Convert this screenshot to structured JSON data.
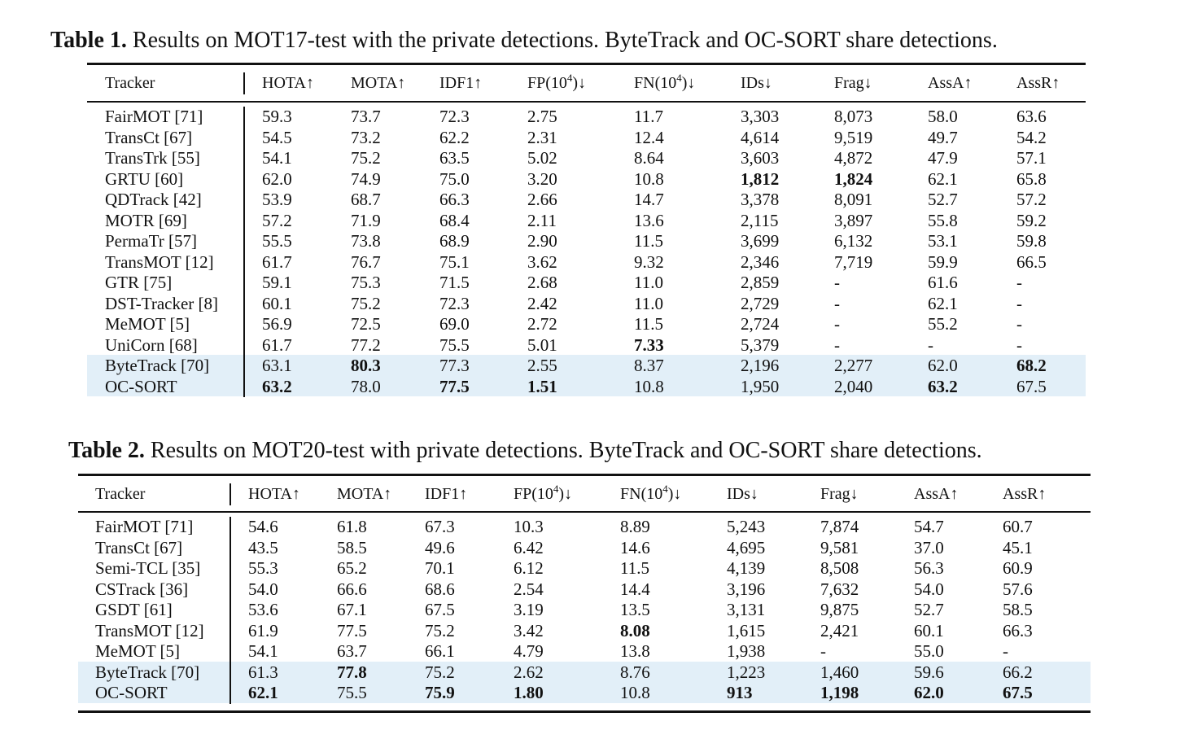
{
  "table1": {
    "caption_label": "Table 1.",
    "caption_text": "Results on MOT17-test with the private detections. ByteTrack and OC-SORT share detections.",
    "columns": [
      "Tracker",
      "HOTA↑",
      "MOTA↑",
      "IDF1↑",
      "FP(10^4)↓",
      "FN(10^4)↓",
      "IDs↓",
      "Frag↓",
      "AssA↑",
      "AssR↑"
    ],
    "highlight_color": "#e2eff8",
    "rows": [
      {
        "cells": [
          "FairMOT [71]",
          "59.3",
          "73.7",
          "72.3",
          "2.75",
          "11.7",
          "3,303",
          "8,073",
          "58.0",
          "63.6"
        ],
        "bold": []
      },
      {
        "cells": [
          "TransCt [67]",
          "54.5",
          "73.2",
          "62.2",
          "2.31",
          "12.4",
          "4,614",
          "9,519",
          "49.7",
          "54.2"
        ],
        "bold": []
      },
      {
        "cells": [
          "TransTrk [55]",
          "54.1",
          "75.2",
          "63.5",
          "5.02",
          "8.64",
          "3,603",
          "4,872",
          "47.9",
          "57.1"
        ],
        "bold": []
      },
      {
        "cells": [
          "GRTU [60]",
          "62.0",
          "74.9",
          "75.0",
          "3.20",
          "10.8",
          "1,812",
          "1,824",
          "62.1",
          "65.8"
        ],
        "bold": [
          6,
          7
        ]
      },
      {
        "cells": [
          "QDTrack [42]",
          "53.9",
          "68.7",
          "66.3",
          "2.66",
          "14.7",
          "3,378",
          "8,091",
          "52.7",
          "57.2"
        ],
        "bold": []
      },
      {
        "cells": [
          "MOTR [69]",
          "57.2",
          "71.9",
          "68.4",
          "2.11",
          "13.6",
          "2,115",
          "3,897",
          "55.8",
          "59.2"
        ],
        "bold": []
      },
      {
        "cells": [
          "PermaTr [57]",
          "55.5",
          "73.8",
          "68.9",
          "2.90",
          "11.5",
          "3,699",
          "6,132",
          "53.1",
          "59.8"
        ],
        "bold": []
      },
      {
        "cells": [
          "TransMOT [12]",
          "61.7",
          "76.7",
          "75.1",
          "3.62",
          "9.32",
          "2,346",
          "7,719",
          "59.9",
          "66.5"
        ],
        "bold": []
      },
      {
        "cells": [
          "GTR [75]",
          "59.1",
          "75.3",
          "71.5",
          "2.68",
          "11.0",
          "2,859",
          "-",
          "61.6",
          "-"
        ],
        "bold": []
      },
      {
        "cells": [
          "DST-Tracker [8]",
          "60.1",
          "75.2",
          "72.3",
          "2.42",
          "11.0",
          "2,729",
          "-",
          "62.1",
          "-"
        ],
        "bold": []
      },
      {
        "cells": [
          "MeMOT [5]",
          "56.9",
          "72.5",
          "69.0",
          "2.72",
          "11.5",
          "2,724",
          "-",
          "55.2",
          "-"
        ],
        "bold": []
      },
      {
        "cells": [
          "UniCorn [68]",
          "61.7",
          "77.2",
          "75.5",
          "5.01",
          "7.33",
          "5,379",
          "-",
          "-",
          "-"
        ],
        "bold": [
          5
        ]
      },
      {
        "cells": [
          "ByteTrack [70]",
          "63.1",
          "80.3",
          "77.3",
          "2.55",
          "8.37",
          "2,196",
          "2,277",
          "62.0",
          "68.2"
        ],
        "bold": [
          2,
          9
        ],
        "highlight": true
      },
      {
        "cells": [
          "OC-SORT",
          "63.2",
          "78.0",
          "77.5",
          "1.51",
          "10.8",
          "1,950",
          "2,040",
          "63.2",
          "67.5"
        ],
        "bold": [
          1,
          3,
          4,
          8
        ],
        "highlight": true
      }
    ]
  },
  "table2": {
    "caption_label": "Table 2.",
    "caption_text": "Results on MOT20-test with private detections. ByteTrack and OC-SORT share detections.",
    "columns": [
      "Tracker",
      "HOTA↑",
      "MOTA↑",
      "IDF1↑",
      "FP(10^4)↓",
      "FN(10^4)↓",
      "IDs↓",
      "Frag↓",
      "AssA↑",
      "AssR↑"
    ],
    "highlight_color": "#e2eff8",
    "rows": [
      {
        "cells": [
          "FairMOT [71]",
          "54.6",
          "61.8",
          "67.3",
          "10.3",
          "8.89",
          "5,243",
          "7,874",
          "54.7",
          "60.7"
        ],
        "bold": []
      },
      {
        "cells": [
          "TransCt [67]",
          "43.5",
          "58.5",
          "49.6",
          "6.42",
          "14.6",
          "4,695",
          "9,581",
          "37.0",
          "45.1"
        ],
        "bold": []
      },
      {
        "cells": [
          "Semi-TCL [35]",
          "55.3",
          "65.2",
          "70.1",
          "6.12",
          "11.5",
          "4,139",
          "8,508",
          "56.3",
          "60.9"
        ],
        "bold": []
      },
      {
        "cells": [
          "CSTrack [36]",
          "54.0",
          "66.6",
          "68.6",
          "2.54",
          "14.4",
          "3,196",
          "7,632",
          "54.0",
          "57.6"
        ],
        "bold": []
      },
      {
        "cells": [
          "GSDT [61]",
          "53.6",
          "67.1",
          "67.5",
          "3.19",
          "13.5",
          "3,131",
          "9,875",
          "52.7",
          "58.5"
        ],
        "bold": []
      },
      {
        "cells": [
          "TransMOT [12]",
          "61.9",
          "77.5",
          "75.2",
          "3.42",
          "8.08",
          "1,615",
          "2,421",
          "60.1",
          "66.3"
        ],
        "bold": [
          5
        ]
      },
      {
        "cells": [
          "MeMOT [5]",
          "54.1",
          "63.7",
          "66.1",
          "4.79",
          "13.8",
          "1,938",
          "-",
          "55.0",
          "-"
        ],
        "bold": []
      },
      {
        "cells": [
          "ByteTrack [70]",
          "61.3",
          "77.8",
          "75.2",
          "2.62",
          "8.76",
          "1,223",
          "1,460",
          "59.6",
          "66.2"
        ],
        "bold": [
          2
        ],
        "highlight": true
      },
      {
        "cells": [
          "OC-SORT",
          "62.1",
          "75.5",
          "75.9",
          "1.80",
          "10.8",
          "913",
          "1,198",
          "62.0",
          "67.5"
        ],
        "bold": [
          1,
          3,
          4,
          6,
          7,
          8,
          9
        ],
        "highlight": true
      }
    ]
  }
}
